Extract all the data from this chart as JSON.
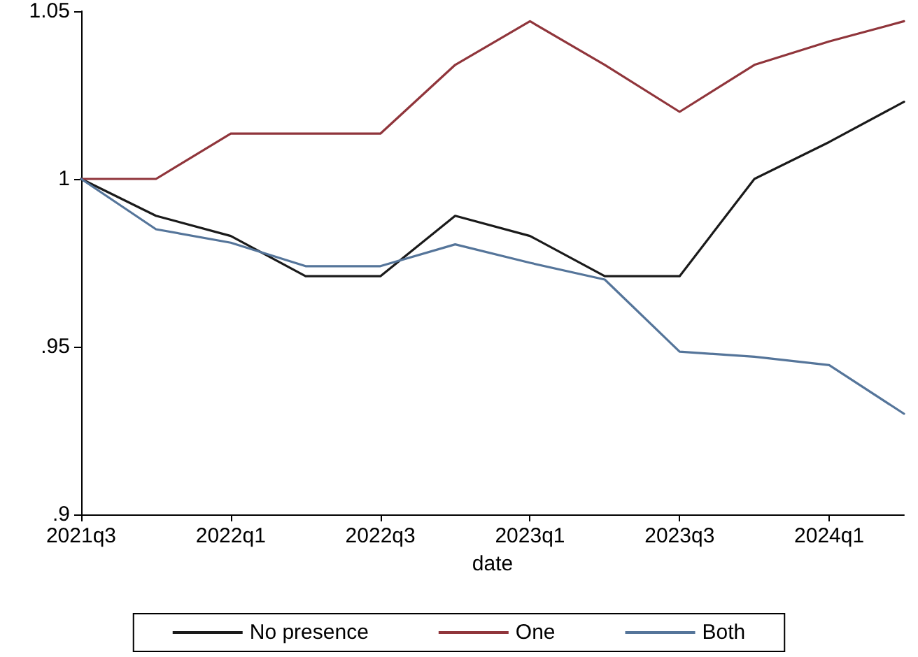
{
  "chart_data": {
    "type": "line",
    "xlabel": "date",
    "categories": [
      "2021q3",
      null,
      "2022q1",
      null,
      "2022q3",
      null,
      "2023q1",
      null,
      "2023q3",
      null,
      "2024q1",
      null
    ],
    "series": [
      {
        "name": "No presence",
        "color": "#1a1a1a",
        "values": [
          1,
          0.989,
          0.983,
          0.971,
          0.971,
          0.989,
          0.983,
          0.971,
          0.971,
          1.0,
          1.011,
          1.023
        ]
      },
      {
        "name": "One",
        "color": "#90353b",
        "values": [
          1,
          1,
          1.0135,
          1.0135,
          1.0135,
          1.034,
          1.047,
          1.034,
          1.02,
          1.034,
          1.041,
          1.047
        ]
      },
      {
        "name": "Both",
        "color": "#55759a",
        "values": [
          1,
          0.985,
          0.981,
          0.974,
          0.974,
          0.9805,
          0.975,
          0.97,
          0.9485,
          0.947,
          0.9445,
          0.93
        ]
      }
    ],
    "ylim": [
      0.9,
      1.05
    ],
    "yticks": [
      {
        "value": 0.9,
        "label": ".9"
      },
      {
        "value": 0.95,
        "label": ".95"
      },
      {
        "value": 1,
        "label": "1"
      },
      {
        "value": 1.05,
        "label": "1.05"
      }
    ],
    "grid": false,
    "legend": "bottom",
    "marker": "none",
    "line_style": "solid"
  }
}
